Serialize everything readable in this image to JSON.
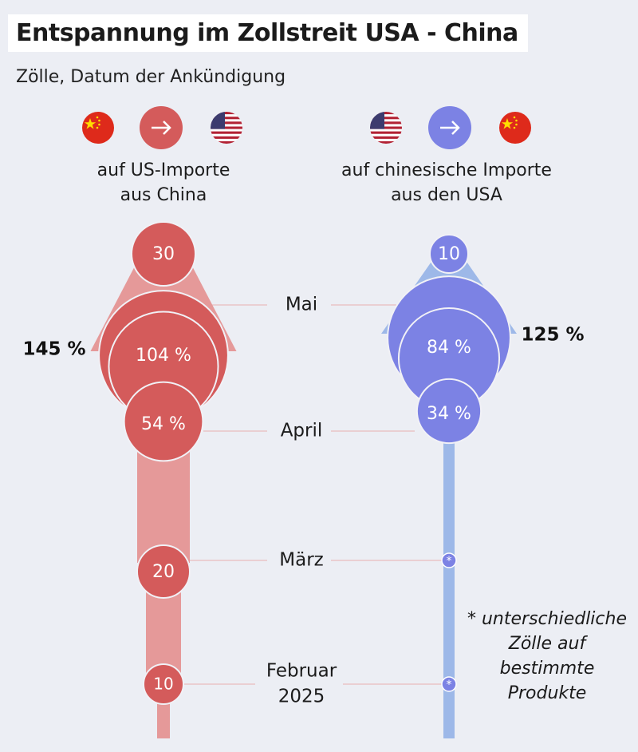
{
  "title": "Entspannung im Zollstreit USA - China",
  "subtitle": "Zölle, Datum der Ankündigung",
  "colors": {
    "us_tariff": "#d45b5b",
    "us_tariff_light": "#e59999",
    "china_tariff": "#7c82e4",
    "china_tariff_light": "#9db8e8",
    "background": "#eceef4"
  },
  "icons": {
    "left": [
      "china-flag-icon",
      "arrow-right-icon",
      "usa-flag-icon"
    ],
    "right": [
      "usa-flag-icon",
      "arrow-right-icon",
      "china-flag-icon"
    ]
  },
  "columns": {
    "left_label_1": "auf US-Importe",
    "left_label_2": "aus China",
    "right_label_1": "auf chinesische Importe",
    "right_label_2": "aus den USA"
  },
  "footnote": {
    "line1": "* unterschiedliche",
    "line2": "Zölle auf",
    "line3": "bestimmte",
    "line4": "Produkte"
  },
  "chart_data": {
    "type": "bubble-timeline",
    "title": "Entspannung im Zollstreit USA - China",
    "subtitle": "Zölle, Datum der Ankündigung",
    "periods": [
      {
        "key": "feb",
        "label": "Februar 2025"
      },
      {
        "key": "mar",
        "label": "März"
      },
      {
        "key": "apr",
        "label": "April"
      },
      {
        "key": "may",
        "label": "Mai"
      }
    ],
    "series": [
      {
        "name": "auf US-Importe aus China",
        "color": "#d45b5b",
        "total_label": "145 %",
        "points": [
          {
            "period": "feb",
            "value": 10,
            "label": "10"
          },
          {
            "period": "mar",
            "value": 20,
            "label": "20"
          },
          {
            "period": "apr",
            "value": 54,
            "label": "54 %"
          },
          {
            "period": "apr",
            "value": 104,
            "label": "104 %"
          },
          {
            "period": "apr",
            "value": 145,
            "label": ""
          },
          {
            "period": "may",
            "value": 30,
            "label": "30"
          }
        ]
      },
      {
        "name": "auf chinesische Importe aus den USA",
        "color": "#7c82e4",
        "total_label": "125 %",
        "points": [
          {
            "period": "feb",
            "value": null,
            "label": "*"
          },
          {
            "period": "mar",
            "value": null,
            "label": "*"
          },
          {
            "period": "apr",
            "value": 34,
            "label": "34 %"
          },
          {
            "period": "apr",
            "value": 84,
            "label": "84 %"
          },
          {
            "period": "apr",
            "value": 125,
            "label": ""
          },
          {
            "period": "may",
            "value": 10,
            "label": "10"
          }
        ]
      }
    ]
  }
}
